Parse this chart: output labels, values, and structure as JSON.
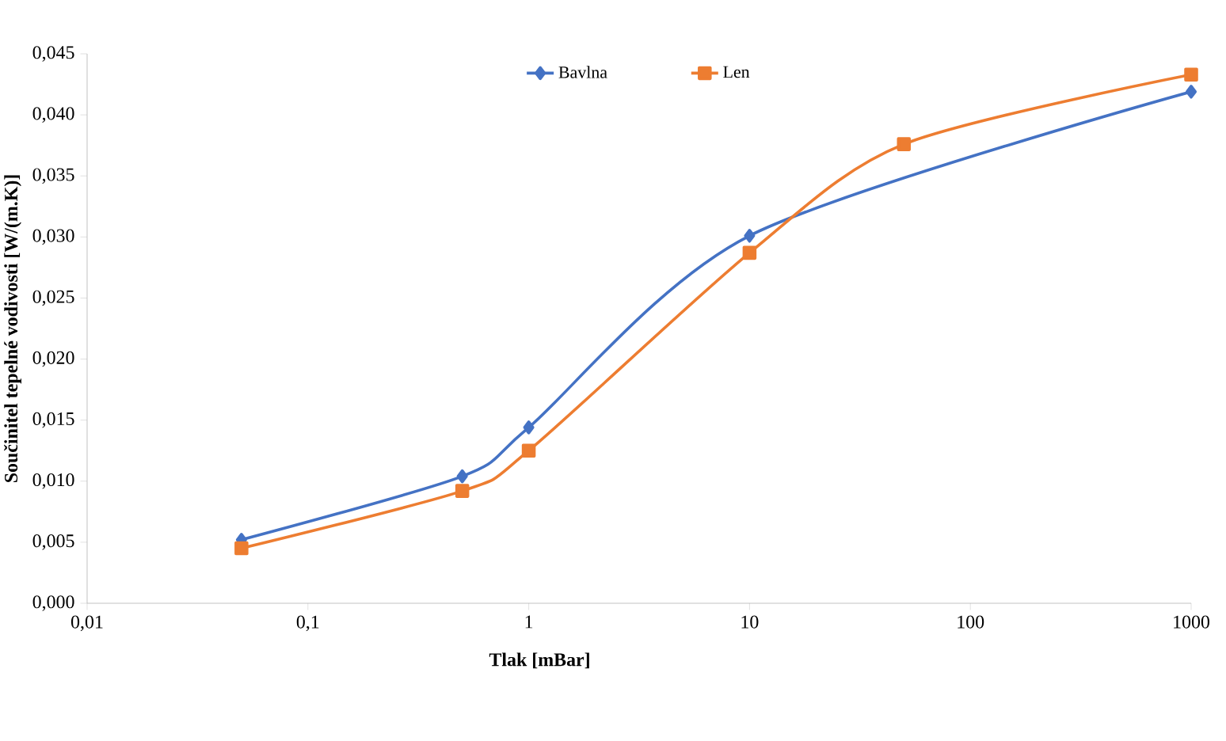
{
  "chart_data": {
    "type": "line",
    "xlabel": "Tlak [mBar]",
    "ylabel": "Součinitel tepelné vodivosti [W/(m.K)]",
    "log": "x",
    "xlim": [
      0.01,
      1000
    ],
    "xticks": [
      {
        "value": 0.01,
        "label": "0,01"
      },
      {
        "value": 0.1,
        "label": "0,1"
      },
      1,
      10,
      100,
      1000
    ],
    "ylim": [
      0,
      0.045
    ],
    "yticks": [
      {
        "value": 0,
        "label": "0,000"
      },
      {
        "value": 0.005,
        "label": "0,005"
      },
      {
        "value": 0.01,
        "label": "0,010"
      },
      {
        "value": 0.015,
        "label": "0,015"
      },
      {
        "value": 0.02,
        "label": "0,020"
      },
      {
        "value": 0.025,
        "label": "0,025"
      },
      {
        "value": 0.03,
        "label": "0,030"
      },
      {
        "value": 0.035,
        "label": "0,035"
      },
      {
        "value": 0.04,
        "label": "0,040"
      },
      {
        "value": 0.045,
        "label": "0,045"
      }
    ],
    "grid": false,
    "legend": "top",
    "line_style": "solid",
    "series": [
      {
        "name": "Bavlna",
        "color": "#4472c4",
        "marker": "diamond",
        "x": [
          0.05,
          0.5,
          1,
          10,
          1000
        ],
        "values": [
          0.0052,
          0.0104,
          0.0144,
          0.0301,
          0.0419
        ]
      },
      {
        "name": "Len",
        "color": "#ed7d31",
        "marker": "square",
        "x": [
          0.05,
          0.5,
          1,
          10,
          50,
          1000
        ],
        "values": [
          0.0045,
          0.0092,
          0.0125,
          0.0287,
          0.0376,
          0.0433
        ]
      }
    ]
  }
}
